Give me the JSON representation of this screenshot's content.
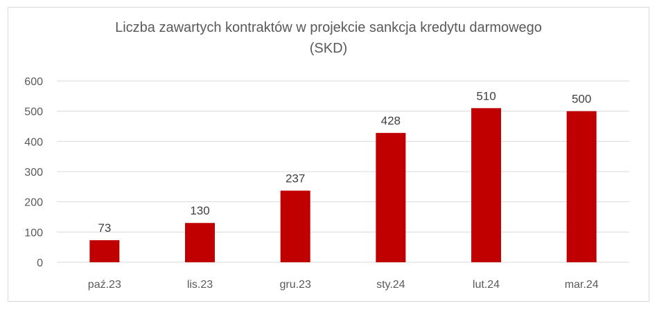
{
  "chart_data": {
    "type": "bar",
    "title_line1": "Liczba zawartych kontraktów w projekcie sankcja kredytu darmowego",
    "title_line2": "(SKD)",
    "categories": [
      "paź.23",
      "lis.23",
      "gru.23",
      "sty.24",
      "lut.24",
      "mar.24"
    ],
    "values": [
      73,
      130,
      237,
      428,
      510,
      500
    ],
    "data_labels": [
      "73",
      "130",
      "237",
      "428",
      "510",
      "500"
    ],
    "y_ticks": [
      "0",
      "100",
      "200",
      "300",
      "400",
      "500",
      "600"
    ],
    "ylim": [
      0,
      600
    ],
    "grid": true,
    "bar_color": "#c00000",
    "grid_color": "#d9d9d9"
  }
}
